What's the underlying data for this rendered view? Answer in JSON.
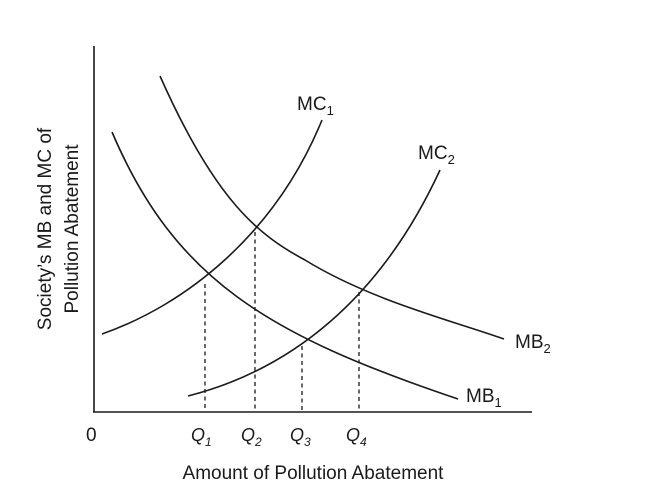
{
  "axes": {
    "origin_label": "0",
    "x_title": "Amount of Pollution Abatement",
    "y_title_line1": "Society’s MB and MC of",
    "y_title_line2": "Pollution Abatement"
  },
  "curves": {
    "mc1": {
      "base": "MC",
      "sub": "1"
    },
    "mc2": {
      "base": "MC",
      "sub": "2"
    },
    "mb1": {
      "base": "MB",
      "sub": "1"
    },
    "mb2": {
      "base": "MB",
      "sub": "2"
    }
  },
  "quantities": [
    {
      "base": "Q",
      "sub": "1"
    },
    {
      "base": "Q",
      "sub": "2"
    },
    {
      "base": "Q",
      "sub": "3"
    },
    {
      "base": "Q",
      "sub": "4"
    }
  ]
}
